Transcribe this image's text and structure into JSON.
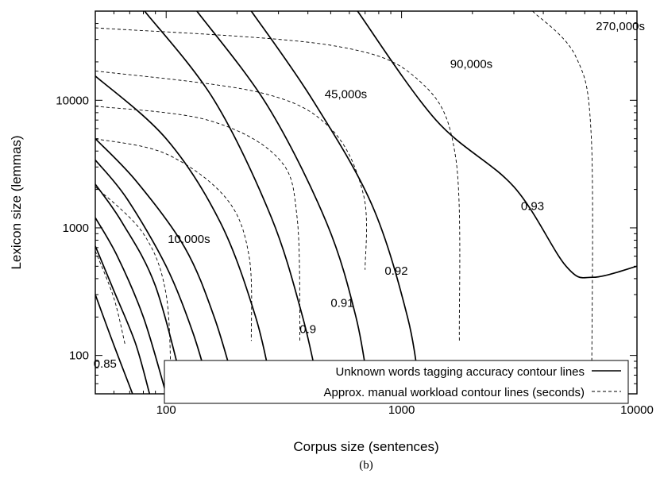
{
  "chart_data": {
    "type": "line",
    "subtitle": "(b)",
    "xlabel": "Corpus size (sentences)",
    "ylabel": "Lexicon size (lemmas)",
    "xscale": "log",
    "yscale": "log",
    "xlim": [
      50,
      10000
    ],
    "ylim": [
      50,
      50000
    ],
    "xticks": [
      100,
      1000,
      10000
    ],
    "xtick_labels": [
      "100",
      "1000",
      "10000"
    ],
    "yticks": [
      100,
      1000,
      10000
    ],
    "ytick_labels": [
      "100",
      "1000",
      "10000"
    ],
    "grid": false,
    "legend_position": "bottom-right",
    "legend": [
      {
        "label": "Unknown words tagging accuracy contour lines",
        "style": "solid"
      },
      {
        "label": "Approx. manual workload contour lines (seconds)",
        "style": "dashed"
      }
    ],
    "accuracy_contours": [
      {
        "label": "",
        "points": [
          [
            50,
            300
          ],
          [
            60,
            120
          ],
          [
            72,
            50
          ]
        ]
      },
      {
        "label": "",
        "points": [
          [
            50,
            720
          ],
          [
            60,
            320
          ],
          [
            74,
            125
          ],
          [
            85,
            50
          ]
        ]
      },
      {
        "label": "",
        "points": [
          [
            50,
            1200
          ],
          [
            62,
            600
          ],
          [
            80,
            200
          ],
          [
            100,
            50
          ]
        ]
      },
      {
        "label": "",
        "points": [
          [
            50,
            2200
          ],
          [
            65,
            1100
          ],
          [
            90,
            350
          ],
          [
            120,
            50
          ]
        ]
      },
      {
        "label": "0.85",
        "points": [
          [
            50,
            3400
          ],
          [
            68,
            1700
          ],
          [
            100,
            500
          ],
          [
            130,
            150
          ],
          [
            155,
            50
          ]
        ]
      },
      {
        "label": "",
        "points": [
          [
            50,
            5000
          ],
          [
            75,
            2300
          ],
          [
            120,
            700
          ],
          [
            160,
            200
          ],
          [
            200,
            50
          ]
        ]
      },
      {
        "label": "",
        "points": [
          [
            50,
            15500
          ],
          [
            100,
            5000
          ],
          [
            170,
            1100
          ],
          [
            240,
            200
          ],
          [
            285,
            50
          ]
        ]
      },
      {
        "label": "0.9",
        "points": [
          [
            81,
            50000
          ],
          [
            160,
            10000
          ],
          [
            280,
            1200
          ],
          [
            380,
            200
          ],
          [
            450,
            50
          ]
        ]
      },
      {
        "label": "0.91",
        "points": [
          [
            135,
            50000
          ],
          [
            270,
            9000
          ],
          [
            480,
            1100
          ],
          [
            640,
            200
          ],
          [
            730,
            50
          ]
        ]
      },
      {
        "label": "0.92",
        "points": [
          [
            230,
            50000
          ],
          [
            420,
            10000
          ],
          [
            750,
            1500
          ],
          [
            1060,
            200
          ],
          [
            1200,
            50
          ]
        ]
      },
      {
        "label": "0.93",
        "points": [
          [
            650,
            50000
          ],
          [
            1400,
            7000
          ],
          [
            3000,
            2100
          ],
          [
            5000,
            500
          ],
          [
            6500,
            410
          ],
          [
            10000,
            500
          ]
        ]
      }
    ],
    "workload_contours": [
      {
        "label": "",
        "points": [
          [
            50,
            660
          ],
          [
            60,
            280
          ],
          [
            67,
            120
          ]
        ]
      },
      {
        "label": "",
        "points": [
          [
            50,
            2100
          ],
          [
            80,
            900
          ],
          [
            100,
            300
          ],
          [
            105,
            50
          ]
        ]
      },
      {
        "label": "10,000s",
        "points": [
          [
            50,
            5000
          ],
          [
            100,
            3800
          ],
          [
            180,
            1700
          ],
          [
            225,
            600
          ],
          [
            230,
            130
          ]
        ]
      },
      {
        "label": "",
        "points": [
          [
            50,
            9000
          ],
          [
            150,
            7000
          ],
          [
            300,
            3500
          ],
          [
            360,
            1200
          ],
          [
            370,
            130
          ]
        ]
      },
      {
        "label": "45,000s",
        "points": [
          [
            50,
            17000
          ],
          [
            250,
            11500
          ],
          [
            500,
            6000
          ],
          [
            690,
            1800
          ],
          [
            700,
            470
          ]
        ]
      },
      {
        "label": "90,000s",
        "points": [
          [
            50,
            37000
          ],
          [
            500,
            27000
          ],
          [
            1200,
            14000
          ],
          [
            1700,
            3500
          ],
          [
            1760,
            130
          ]
        ]
      },
      {
        "label": "270,000s",
        "points": [
          [
            3600,
            50000
          ],
          [
            5500,
            22000
          ],
          [
            6400,
            5000
          ],
          [
            6420,
            60
          ]
        ]
      }
    ]
  }
}
